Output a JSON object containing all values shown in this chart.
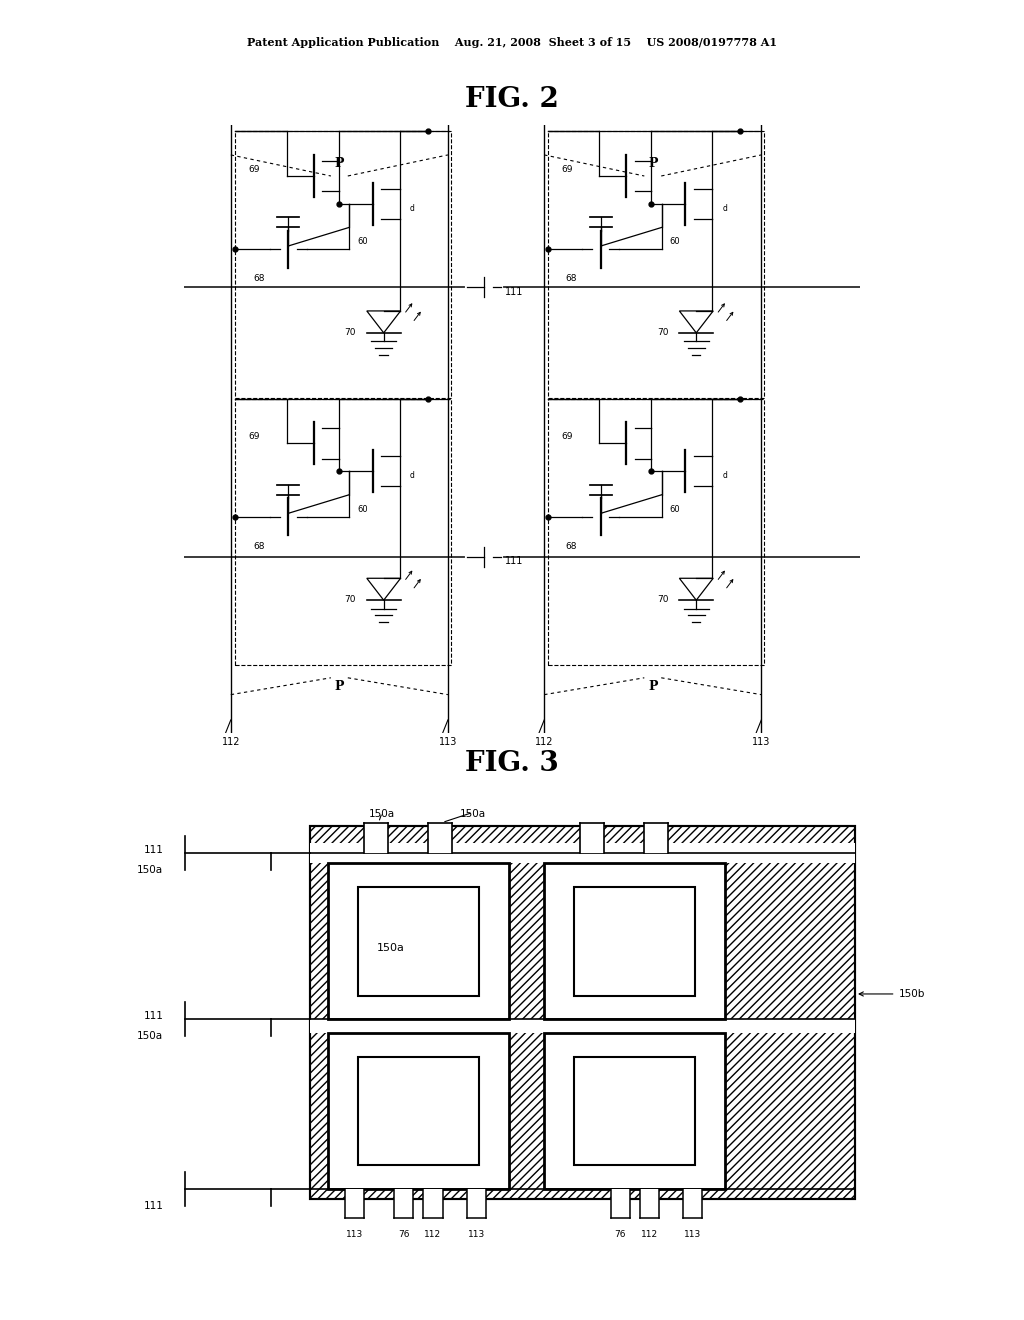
{
  "header": "Patent Application Publication    Aug. 21, 2008  Sheet 3 of 15    US 2008/0197778 A1",
  "fig2_title": "FIG. 2",
  "fig3_title": "FIG. 3",
  "bg_color": "#ffffff"
}
